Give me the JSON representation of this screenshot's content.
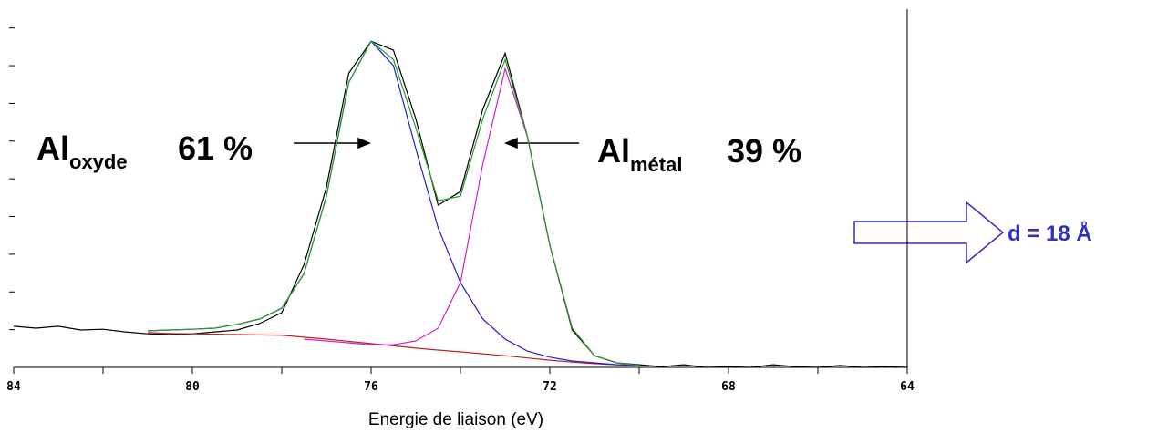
{
  "chart_data": {
    "type": "line",
    "xlabel": "Energie de liaison (eV)",
    "x": [
      84,
      83.5,
      83,
      82.5,
      82,
      81.5,
      81,
      80.5,
      80,
      79.5,
      79,
      78.5,
      78,
      77.5,
      77,
      76.5,
      76,
      75.5,
      75,
      74.5,
      74,
      73.5,
      73,
      72.5,
      72,
      71.5,
      71,
      70.5,
      70,
      69.5,
      69,
      68.5,
      68,
      67.5,
      67,
      66.5,
      66,
      65.5,
      65,
      64.5,
      64
    ],
    "series": [
      {
        "color": "#000000",
        "values": [
          10.9,
          10.4,
          10.9,
          9.9,
          10.1,
          9.4,
          8.9,
          8.7,
          8.9,
          9.4,
          9.9,
          11.6,
          14.5,
          27.3,
          47.8,
          78.0,
          86.5,
          84.1,
          65.9,
          43.0,
          46.6,
          68.4,
          83.3,
          61.1,
          32.4,
          9.9,
          3.1,
          1.2,
          0.7,
          0.2,
          0.7,
          0,
          0.2,
          0,
          0.7,
          0.2,
          0,
          0.5,
          0,
          0.2,
          0
        ]
      },
      {
        "color": "#c02020",
        "values": [
          null,
          null,
          null,
          null,
          null,
          null,
          9.2,
          9.0,
          8.9,
          8.8,
          8.7,
          8.6,
          8.5,
          8.0,
          7.5,
          6.9,
          6.3,
          5.7,
          5.1,
          4.6,
          4.1,
          3.6,
          3.1,
          2.5,
          1.9,
          1.4,
          1.0,
          0.7,
          0.5,
          null,
          null,
          null,
          null,
          null,
          null,
          null,
          null,
          null,
          null,
          null,
          null
        ]
      },
      {
        "color": "#2020d0",
        "values": [
          null,
          null,
          null,
          null,
          null,
          null,
          9.7,
          9.9,
          10.1,
          10.4,
          11.4,
          12.8,
          15.7,
          24.9,
          45.4,
          75.6,
          86.5,
          80.0,
          58.0,
          37.0,
          22.5,
          12.8,
          7.5,
          4.3,
          2.7,
          1.7,
          1.2,
          0.7,
          0.5,
          null,
          null,
          null,
          null,
          null,
          null,
          null,
          null,
          null,
          null,
          null,
          null
        ]
      },
      {
        "color": "#d020d0",
        "values": [
          null,
          null,
          null,
          null,
          null,
          null,
          null,
          null,
          null,
          null,
          null,
          null,
          null,
          7.5,
          7.0,
          6.5,
          6.0,
          6.0,
          7.0,
          10.4,
          22.5,
          53.9,
          79.2,
          61.1,
          32.4,
          10.4,
          3.1,
          1.2,
          0.5,
          null,
          null,
          null,
          null,
          null,
          null,
          null,
          null,
          null,
          null,
          null,
          null
        ]
      },
      {
        "color": "#2a9a2a",
        "values": [
          null,
          null,
          null,
          null,
          null,
          null,
          9.7,
          9.9,
          10.1,
          10.4,
          11.4,
          12.8,
          15.7,
          24.9,
          45.4,
          75.6,
          86.5,
          81.6,
          63.5,
          44.2,
          45.4,
          65.9,
          81.6,
          61.1,
          32.4,
          10.4,
          3.1,
          1.2,
          0.5,
          null,
          null,
          null,
          null,
          null,
          null,
          null,
          null,
          null,
          null,
          null,
          null
        ]
      }
    ],
    "xlim": [
      84,
      64
    ],
    "xticks": [
      84,
      80,
      76,
      72,
      68,
      64
    ],
    "xminorticks": [
      82,
      78,
      74,
      70,
      66
    ],
    "ylim": [
      0,
      95
    ],
    "yticks": [
      10,
      20,
      30,
      40,
      50,
      60,
      70,
      80,
      90
    ],
    "ytick_labels_shown": false,
    "annotations": [
      {
        "text": "Al",
        "sub": "oxyde",
        "label": "61 %"
      },
      {
        "text": "Al",
        "sub": "métal",
        "label": "39 %"
      },
      {
        "text": "d = 18 Å",
        "color": "#3030c0"
      }
    ]
  }
}
